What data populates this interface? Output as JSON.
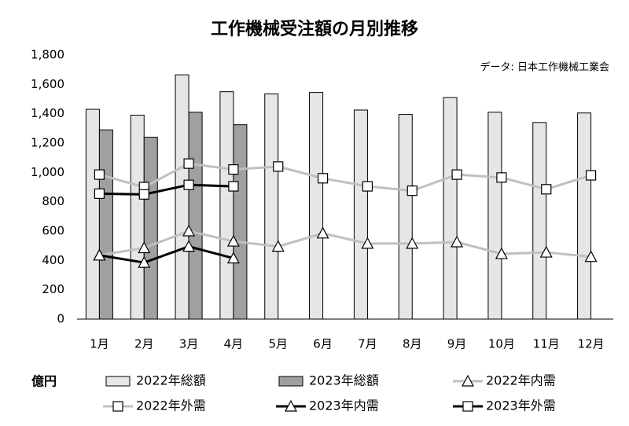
{
  "chart_data": {
    "type": "bar",
    "title": "工作機械受注額の月別推移",
    "source": "データ: 日本工作機械工業会",
    "unit_label": "億円",
    "categories": [
      "1月",
      "2月",
      "3月",
      "4月",
      "5月",
      "6月",
      "7月",
      "8月",
      "9月",
      "10月",
      "11月",
      "12月"
    ],
    "ylim": [
      0,
      1800
    ],
    "yticks": [
      0,
      200,
      400,
      600,
      800,
      {
        "value": 1000,
        "label": "1,000"
      },
      {
        "value": 1200,
        "label": "1,200"
      },
      {
        "value": 1400,
        "label": "1,400"
      },
      {
        "value": 1600,
        "label": "1,600"
      },
      {
        "value": 1800,
        "label": "1,800"
      }
    ],
    "grid": false,
    "series": [
      {
        "name": "2022年総額",
        "type": "bar",
        "color": "#e6e6e6",
        "values": [
          1430,
          1390,
          1665,
          1550,
          1535,
          1545,
          1425,
          1395,
          1510,
          1410,
          1340,
          1405
        ]
      },
      {
        "name": "2023年総額",
        "type": "bar",
        "color": "#a0a0a0",
        "values": [
          1290,
          1240,
          1410,
          1325,
          null,
          null,
          null,
          null,
          null,
          null,
          null,
          null
        ]
      },
      {
        "name": "2022年内需",
        "type": "line",
        "marker": "triangle",
        "color": "#c0c0c0",
        "values": [
          435,
          485,
          600,
          530,
          495,
          585,
          515,
          515,
          525,
          445,
          455,
          425
        ]
      },
      {
        "name": "2022年外需",
        "type": "line",
        "marker": "square",
        "color": "#c0c0c0",
        "values": [
          985,
          900,
          1060,
          1020,
          1040,
          960,
          905,
          875,
          985,
          965,
          885,
          980
        ]
      },
      {
        "name": "2023年内需",
        "type": "line",
        "marker": "triangle",
        "color": "#000000",
        "values": [
          435,
          385,
          495,
          415,
          null,
          null,
          null,
          null,
          null,
          null,
          null,
          null
        ]
      },
      {
        "name": "2023年外需",
        "type": "line",
        "marker": "square",
        "color": "#000000",
        "values": [
          855,
          850,
          915,
          905,
          null,
          null,
          null,
          null,
          null,
          null,
          null,
          null
        ]
      }
    ]
  }
}
